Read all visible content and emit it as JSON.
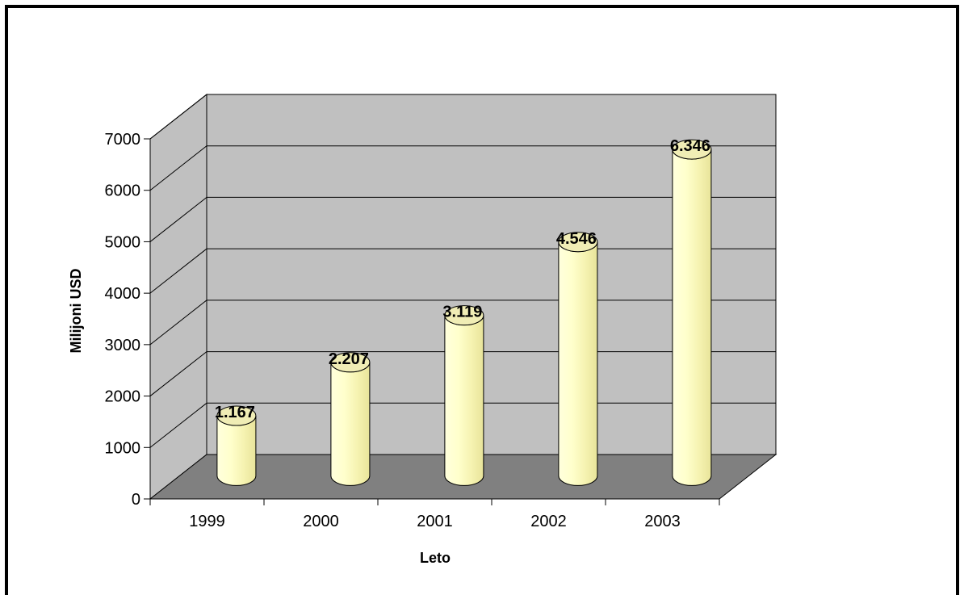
{
  "chart_data": {
    "type": "bar",
    "style": "3d-cylinder",
    "categories": [
      "1999",
      "2000",
      "2001",
      "2002",
      "2003"
    ],
    "values": [
      1167,
      2207,
      3119,
      4546,
      6346
    ],
    "data_labels": [
      "1.167",
      "2.207",
      "3.119",
      "4.546",
      "6.346"
    ],
    "xlabel": "Leto",
    "ylabel": "Milijoni USD",
    "ylim": [
      0,
      7000
    ],
    "yticks": [
      0,
      1000,
      2000,
      3000,
      4000,
      5000,
      6000,
      7000
    ],
    "grid": true,
    "legend": "none",
    "colors": {
      "bar_fill": "#FFFFCC",
      "back_wall": "#C0C0C0",
      "floor": "#808080",
      "gridline": "#000000"
    }
  }
}
